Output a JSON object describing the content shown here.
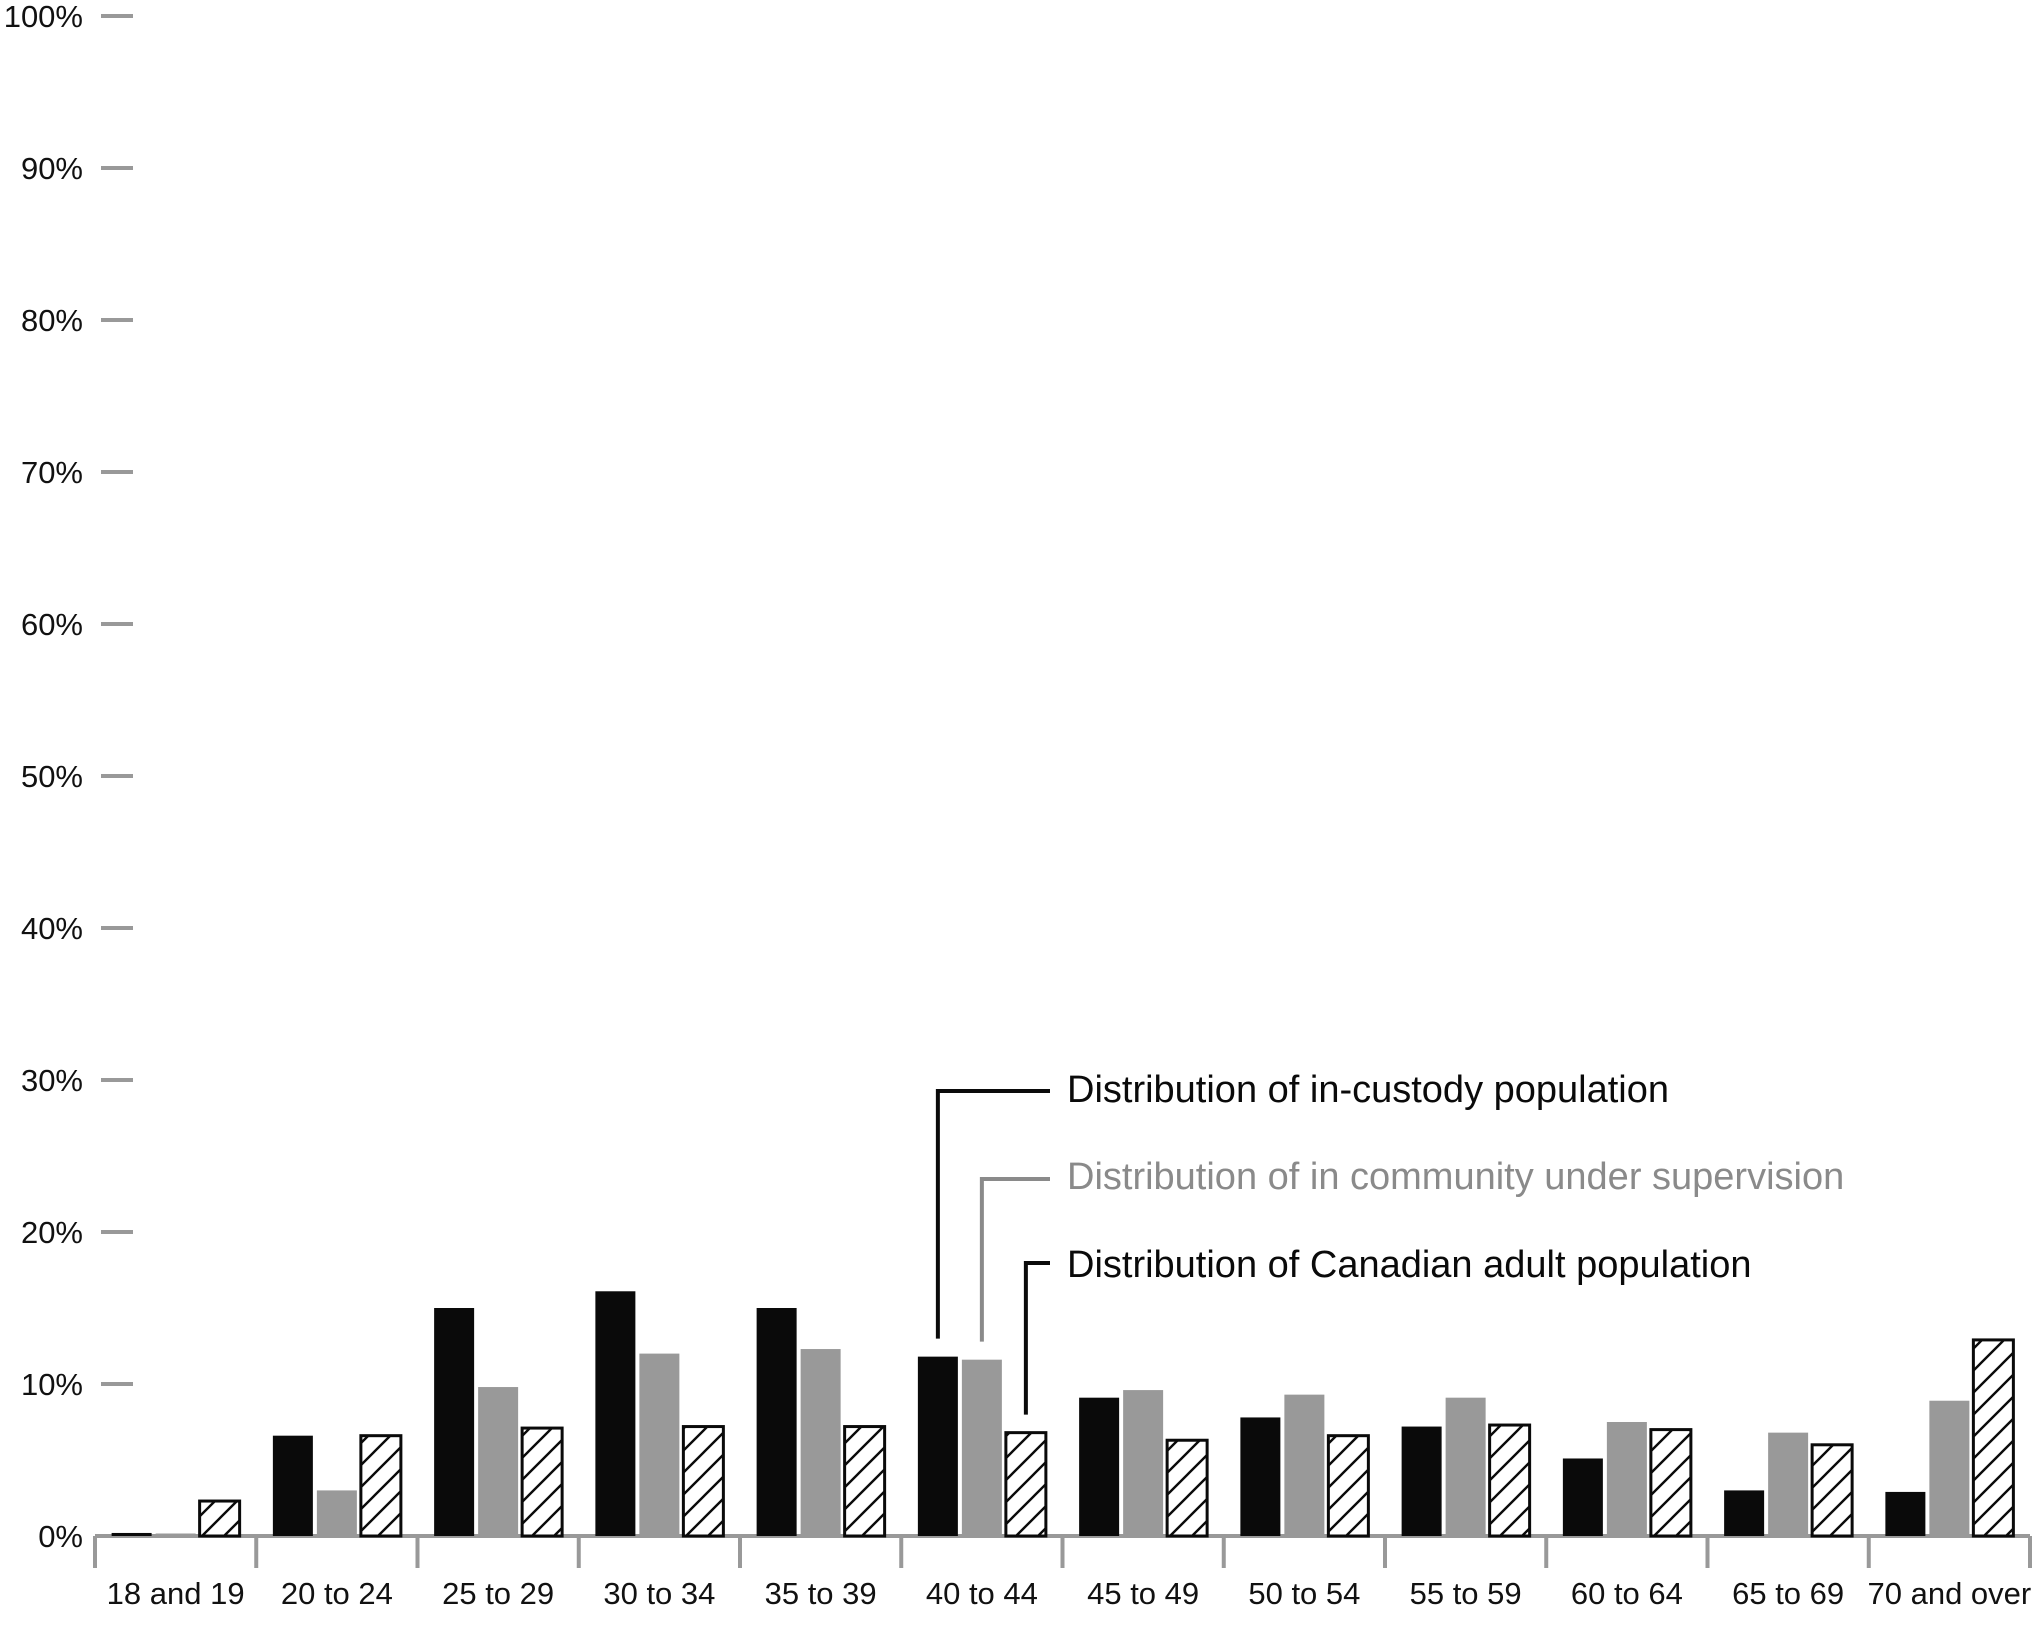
{
  "chart_data": {
    "type": "bar",
    "title": "",
    "xlabel": "",
    "ylabel": "",
    "ylim": [
      0,
      100
    ],
    "yticks": [
      "0%",
      "10%",
      "20%",
      "30%",
      "40%",
      "50%",
      "60%",
      "70%",
      "80%",
      "90%",
      "100%"
    ],
    "categories": [
      "18 and 19",
      "20 to 24",
      "25 to 29",
      "30 to 34",
      "35 to 39",
      "40 to 44",
      "45 to 49",
      "50 to 54",
      "55 to 59",
      "60 to 64",
      "65 to 69",
      "70 and over"
    ],
    "series": [
      {
        "name": "Distribution of in-custody population",
        "style": "solid",
        "color": "#0a0a0a",
        "values": [
          0.2,
          6.6,
          15.0,
          16.1,
          15.0,
          11.8,
          9.1,
          7.8,
          7.2,
          5.1,
          3.0,
          2.9
        ]
      },
      {
        "name": "Distribution of in community under supervision",
        "style": "solid",
        "color": "#999999",
        "values": [
          0.0,
          3.0,
          9.8,
          12.0,
          12.3,
          11.6,
          9.6,
          9.3,
          9.1,
          7.5,
          6.8,
          8.9
        ]
      },
      {
        "name": "Distribution of Canadian adult population",
        "style": "hatched",
        "color": "#0a0a0a",
        "values": [
          2.3,
          6.6,
          7.1,
          7.2,
          7.2,
          6.8,
          6.3,
          6.6,
          7.3,
          7.0,
          6.0,
          12.9
        ]
      }
    ],
    "legend": {
      "placement": "annotation callouts pointing to the 40 to 44 group",
      "labels": [
        "Distribution of in-custody population",
        "Distribution of in community under supervision",
        "Distribution of Canadian adult population"
      ],
      "colors": [
        "#0a0a0a",
        "#8a8a8a",
        "#0a0a0a"
      ]
    },
    "axis_color": "#999999",
    "grid": false
  }
}
